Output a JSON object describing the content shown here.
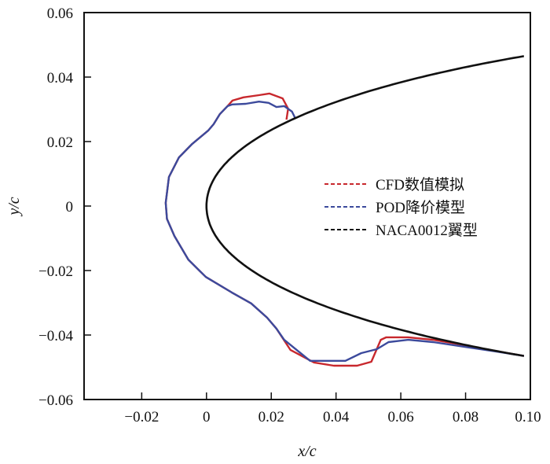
{
  "chart_data": {
    "type": "line",
    "title": "",
    "xlabel": "x/c",
    "ylabel": "y/c",
    "xlim": [
      -0.0378,
      0.1
    ],
    "ylim": [
      -0.06,
      0.06
    ],
    "grid": false,
    "legend_position": "right",
    "x_ticks": [
      {
        "value": -0.02,
        "label": "−0.02"
      },
      {
        "value": 0,
        "label": "0"
      },
      {
        "value": 0.02,
        "label": "0.02"
      },
      {
        "value": 0.04,
        "label": "0.04"
      },
      {
        "value": 0.06,
        "label": "0.06"
      },
      {
        "value": 0.08,
        "label": "0.08"
      },
      {
        "value": 0.1,
        "label": "0.10"
      }
    ],
    "y_ticks": [
      {
        "value": 0.06,
        "label": "0.06"
      },
      {
        "value": 0.04,
        "label": "0.04"
      },
      {
        "value": 0.02,
        "label": "0.02"
      },
      {
        "value": 0,
        "label": "0"
      },
      {
        "value": -0.02,
        "label": "−0.02"
      },
      {
        "value": -0.04,
        "label": "−0.04"
      },
      {
        "value": -0.06,
        "label": "−0.06"
      }
    ],
    "series": [
      {
        "name": "CFD数值模拟",
        "color": "#c8282d",
        "points": [
          [
            0.0247,
            0.0268
          ],
          [
            0.0252,
            0.0302
          ],
          [
            0.0235,
            0.0334
          ],
          [
            0.0194,
            0.0349
          ],
          [
            0.0162,
            0.0344
          ],
          [
            0.0114,
            0.0337
          ],
          [
            0.008,
            0.0327
          ],
          [
            0.0065,
            0.031
          ],
          [
            0.0041,
            0.0285
          ],
          [
            0.0022,
            0.0254
          ],
          [
            0.0005,
            0.0234
          ],
          [
            -0.0044,
            0.0193
          ],
          [
            -0.0085,
            0.0151
          ],
          [
            -0.0116,
            0.009
          ],
          [
            -0.0126,
            0.001
          ],
          [
            -0.0122,
            -0.004
          ],
          [
            -0.0099,
            -0.0093
          ],
          [
            -0.0056,
            -0.0166
          ],
          [
            -0.0002,
            -0.022
          ],
          [
            0.0078,
            -0.0268
          ],
          [
            0.0138,
            -0.0302
          ],
          [
            0.0187,
            -0.0346
          ],
          [
            0.0216,
            -0.038
          ],
          [
            0.0259,
            -0.0446
          ],
          [
            0.0332,
            -0.0485
          ],
          [
            0.0393,
            -0.0495
          ],
          [
            0.0465,
            -0.0495
          ],
          [
            0.0509,
            -0.0483
          ],
          [
            0.0538,
            -0.0415
          ],
          [
            0.0555,
            -0.0407
          ],
          [
            0.0623,
            -0.0407
          ],
          [
            0.07,
            -0.0415
          ],
          [
            0.08,
            -0.0432
          ],
          [
            0.09,
            -0.0451
          ],
          [
            0.098,
            -0.0465
          ]
        ]
      },
      {
        "name": "POD降价模型",
        "color": "#3c4a9c",
        "points": [
          [
            0.0274,
            0.0273
          ],
          [
            0.0264,
            0.0293
          ],
          [
            0.024,
            0.031
          ],
          [
            0.0216,
            0.0307
          ],
          [
            0.0192,
            0.032
          ],
          [
            0.0162,
            0.0324
          ],
          [
            0.0121,
            0.0317
          ],
          [
            0.008,
            0.0315
          ],
          [
            0.0065,
            0.031
          ],
          [
            0.0041,
            0.0285
          ],
          [
            0.0022,
            0.0254
          ],
          [
            0.0005,
            0.0234
          ],
          [
            -0.0044,
            0.0193
          ],
          [
            -0.0085,
            0.0151
          ],
          [
            -0.0116,
            0.009
          ],
          [
            -0.0126,
            0.001
          ],
          [
            -0.0122,
            -0.004
          ],
          [
            -0.0099,
            -0.0093
          ],
          [
            -0.0056,
            -0.0166
          ],
          [
            -0.0002,
            -0.022
          ],
          [
            0.0078,
            -0.0268
          ],
          [
            0.0138,
            -0.0302
          ],
          [
            0.0187,
            -0.0346
          ],
          [
            0.0216,
            -0.038
          ],
          [
            0.024,
            -0.0415
          ],
          [
            0.032,
            -0.048
          ],
          [
            0.0429,
            -0.048
          ],
          [
            0.0478,
            -0.0456
          ],
          [
            0.0526,
            -0.0444
          ],
          [
            0.0562,
            -0.0422
          ],
          [
            0.0623,
            -0.0415
          ],
          [
            0.07,
            -0.0422
          ],
          [
            0.08,
            -0.0437
          ],
          [
            0.09,
            -0.0452
          ],
          [
            0.098,
            -0.0465
          ]
        ]
      },
      {
        "name": "NACA0012翼型",
        "color": "#111111",
        "function": "naca0012_scaled",
        "x_range": [
          0,
          0.098
        ]
      }
    ]
  }
}
